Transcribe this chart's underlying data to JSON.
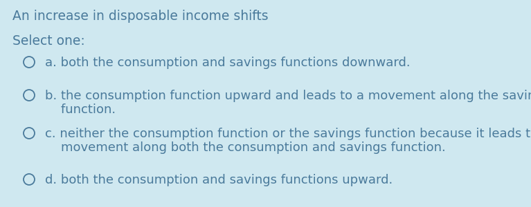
{
  "background_color": "#cfe8f0",
  "text_color": "#4a7a9b",
  "title": "An increase in disposable income shifts",
  "subtitle": "Select one:",
  "option_lines": [
    [
      "a. both the consumption and savings functions downward."
    ],
    [
      "b. the consumption function upward and leads to a movement along the savings",
      "    function."
    ],
    [
      "c. neither the consumption function or the savings function because it leads to a",
      "    movement along both the consumption and savings function."
    ],
    [
      "d. both the consumption and savings functions upward."
    ]
  ],
  "title_fontsize": 13.5,
  "subtitle_fontsize": 13.5,
  "option_fontsize": 13.0,
  "figsize": [
    7.67,
    3.0
  ],
  "dpi": 100
}
